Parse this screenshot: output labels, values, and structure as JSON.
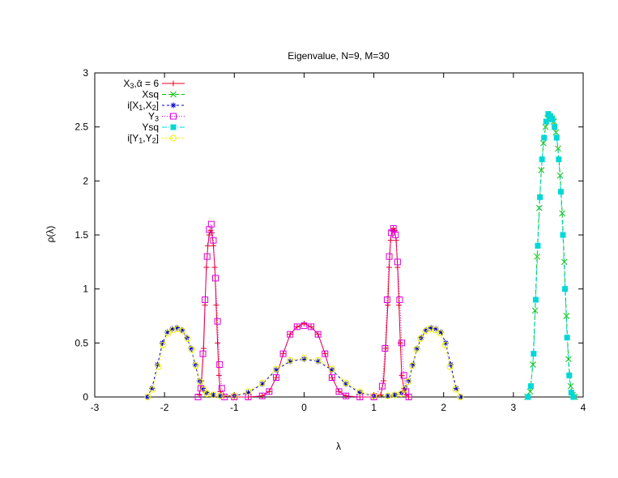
{
  "chart_data": {
    "type": "line",
    "title": "Eigenvalue, N=9, M=30",
    "xlabel": "λ",
    "ylabel": "ρ(λ)",
    "xlim": [
      -3,
      4
    ],
    "ylim": [
      0,
      3
    ],
    "xticks": [
      -3,
      -2,
      -1,
      0,
      1,
      2,
      3,
      4
    ],
    "yticks": [
      0,
      0.5,
      1,
      1.5,
      2,
      2.5,
      3
    ],
    "xtick_labels": [
      "-3",
      "-2",
      "-1",
      "0",
      "1",
      "2",
      "3",
      "4"
    ],
    "ytick_labels": [
      "0",
      "0.5",
      "1",
      "1.5",
      "2",
      "2.5",
      "3"
    ],
    "grid": false,
    "legend_position": "top-left",
    "series": [
      {
        "name": "X_3,ᾱ = 6",
        "legend_parts": [
          [
            "X",
            ""
          ],
          [
            "3",
            "sub"
          ],
          [
            ",ᾱ = 6",
            ""
          ]
        ],
        "color": "#e8001e",
        "marker": "plus",
        "dash": "",
        "x": [
          -1.5,
          -1.47,
          -1.44,
          -1.42,
          -1.4,
          -1.38,
          -1.36,
          -1.34,
          -1.32,
          -1.3,
          -1.28,
          -1.26,
          -1.24,
          -1.22,
          -1.2,
          -1.15,
          -1.0,
          -0.8,
          -0.6,
          -0.5,
          -0.4,
          -0.3,
          -0.2,
          -0.1,
          0.0,
          0.1,
          0.2,
          0.3,
          0.4,
          0.5,
          0.6,
          0.8,
          1.0,
          1.1,
          1.14,
          1.17,
          1.2,
          1.22,
          1.24,
          1.26,
          1.28,
          1.3,
          1.32,
          1.34,
          1.36,
          1.38,
          1.4,
          1.43,
          1.46,
          1.5
        ],
        "y": [
          0.02,
          0.15,
          0.45,
          0.85,
          1.2,
          1.4,
          1.5,
          1.54,
          1.52,
          1.4,
          1.2,
          0.85,
          0.5,
          0.2,
          0.05,
          0.01,
          0.0,
          0.0,
          0.01,
          0.05,
          0.18,
          0.4,
          0.58,
          0.65,
          0.68,
          0.65,
          0.58,
          0.4,
          0.18,
          0.05,
          0.01,
          0.0,
          0.0,
          0.02,
          0.15,
          0.45,
          0.85,
          1.2,
          1.45,
          1.54,
          1.56,
          1.54,
          1.45,
          1.2,
          0.85,
          0.5,
          0.2,
          0.08,
          0.02,
          0.0
        ]
      },
      {
        "name": "Xsq",
        "legend_parts": [
          [
            "Xsq",
            ""
          ]
        ],
        "color": "#00c000",
        "marker": "x",
        "dash": "5,3",
        "x": [
          3.2,
          3.24,
          3.28,
          3.31,
          3.34,
          3.37,
          3.4,
          3.43,
          3.46,
          3.49,
          3.52,
          3.55,
          3.58,
          3.61,
          3.64,
          3.67,
          3.7,
          3.73,
          3.76,
          3.79,
          3.82,
          3.85,
          3.88
        ],
        "y": [
          0.0,
          0.05,
          0.3,
          0.8,
          1.3,
          1.75,
          2.1,
          2.35,
          2.5,
          2.58,
          2.6,
          2.58,
          2.55,
          2.45,
          2.3,
          2.05,
          1.7,
          1.25,
          0.75,
          0.35,
          0.1,
          0.02,
          0.0
        ]
      },
      {
        "name": "i[X_1,X_2]",
        "legend_parts": [
          [
            "i[X",
            ""
          ],
          [
            "1",
            "sub"
          ],
          [
            ",X",
            ""
          ],
          [
            "2",
            "sub"
          ],
          [
            "]",
            ""
          ]
        ],
        "color": "#0000d0",
        "marker": "star",
        "dash": "3,3",
        "x": [
          -2.25,
          -2.18,
          -2.1,
          -2.03,
          -1.96,
          -1.89,
          -1.82,
          -1.75,
          -1.68,
          -1.62,
          -1.56,
          -1.5,
          -1.45,
          -1.4,
          -1.3,
          -1.2,
          -1.0,
          -0.8,
          -0.6,
          -0.4,
          -0.2,
          0.0,
          0.2,
          0.4,
          0.6,
          0.8,
          1.0,
          1.2,
          1.3,
          1.4,
          1.45,
          1.5,
          1.56,
          1.62,
          1.68,
          1.75,
          1.82,
          1.89,
          1.96,
          2.03,
          2.1,
          2.18,
          2.25
        ],
        "y": [
          0.0,
          0.08,
          0.3,
          0.5,
          0.6,
          0.63,
          0.64,
          0.62,
          0.55,
          0.45,
          0.3,
          0.15,
          0.08,
          0.04,
          0.02,
          0.01,
          0.01,
          0.04,
          0.12,
          0.25,
          0.33,
          0.35,
          0.33,
          0.25,
          0.12,
          0.04,
          0.01,
          0.01,
          0.02,
          0.04,
          0.08,
          0.15,
          0.3,
          0.45,
          0.55,
          0.62,
          0.64,
          0.63,
          0.6,
          0.5,
          0.3,
          0.08,
          0.0
        ]
      },
      {
        "name": "Y_3",
        "legend_parts": [
          [
            "Y",
            ""
          ],
          [
            "3",
            "sub"
          ]
        ],
        "color": "#e000e0",
        "marker": "square",
        "dash": "1,2",
        "x": [
          -1.52,
          -1.48,
          -1.45,
          -1.42,
          -1.39,
          -1.36,
          -1.33,
          -1.3,
          -1.27,
          -1.24,
          -1.21,
          -1.18,
          -1.14,
          -1.0,
          -0.8,
          -0.6,
          -0.5,
          -0.4,
          -0.3,
          -0.2,
          -0.1,
          0.0,
          0.1,
          0.2,
          0.3,
          0.4,
          0.5,
          0.6,
          0.8,
          1.0,
          1.12,
          1.16,
          1.19,
          1.22,
          1.25,
          1.28,
          1.31,
          1.34,
          1.37,
          1.4,
          1.43,
          1.46,
          1.5
        ],
        "y": [
          0.0,
          0.08,
          0.4,
          0.9,
          1.3,
          1.55,
          1.6,
          1.45,
          1.1,
          0.7,
          0.3,
          0.08,
          0.0,
          0.0,
          0.0,
          0.01,
          0.05,
          0.18,
          0.4,
          0.58,
          0.65,
          0.66,
          0.65,
          0.58,
          0.4,
          0.18,
          0.05,
          0.01,
          0.0,
          0.0,
          0.1,
          0.45,
          0.9,
          1.3,
          1.52,
          1.56,
          1.5,
          1.25,
          0.9,
          0.5,
          0.2,
          0.05,
          0.0
        ]
      },
      {
        "name": "Ysq",
        "legend_parts": [
          [
            "Ysq",
            ""
          ]
        ],
        "color": "#00d8d8",
        "marker": "filled-square",
        "dash": "6,2,1,2",
        "x": [
          3.21,
          3.25,
          3.29,
          3.32,
          3.35,
          3.38,
          3.41,
          3.44,
          3.47,
          3.5,
          3.53,
          3.56,
          3.59,
          3.62,
          3.65,
          3.68,
          3.71,
          3.74,
          3.77,
          3.8,
          3.83,
          3.86
        ],
        "y": [
          0.0,
          0.1,
          0.4,
          0.9,
          1.4,
          1.85,
          2.2,
          2.4,
          2.55,
          2.62,
          2.6,
          2.57,
          2.5,
          2.4,
          2.2,
          1.9,
          1.5,
          1.0,
          0.55,
          0.2,
          0.04,
          0.0
        ]
      },
      {
        "name": "i[Y_1,Y_2]",
        "legend_parts": [
          [
            "i[Y",
            ""
          ],
          [
            "1",
            "sub"
          ],
          [
            ",Y",
            ""
          ],
          [
            "2",
            "sub"
          ],
          [
            "]",
            ""
          ]
        ],
        "color": "#f0f000",
        "marker": "circle",
        "dash": "2,2",
        "x": [
          -2.24,
          -2.17,
          -2.09,
          -2.02,
          -1.95,
          -1.88,
          -1.81,
          -1.74,
          -1.67,
          -1.61,
          -1.55,
          -1.49,
          -1.44,
          -1.39,
          -1.3,
          -1.2,
          -1.0,
          -0.8,
          -0.6,
          -0.4,
          -0.2,
          0.0,
          0.2,
          0.4,
          0.6,
          0.8,
          1.0,
          1.2,
          1.3,
          1.39,
          1.44,
          1.49,
          1.55,
          1.61,
          1.67,
          1.74,
          1.81,
          1.88,
          1.95,
          2.02,
          2.09,
          2.17,
          2.24
        ],
        "y": [
          0.0,
          0.07,
          0.28,
          0.48,
          0.59,
          0.62,
          0.63,
          0.61,
          0.54,
          0.44,
          0.29,
          0.14,
          0.07,
          0.03,
          0.02,
          0.01,
          0.01,
          0.05,
          0.13,
          0.26,
          0.34,
          0.36,
          0.34,
          0.26,
          0.13,
          0.05,
          0.01,
          0.01,
          0.02,
          0.03,
          0.07,
          0.14,
          0.29,
          0.44,
          0.54,
          0.61,
          0.63,
          0.62,
          0.59,
          0.48,
          0.28,
          0.07,
          0.0
        ]
      }
    ]
  }
}
